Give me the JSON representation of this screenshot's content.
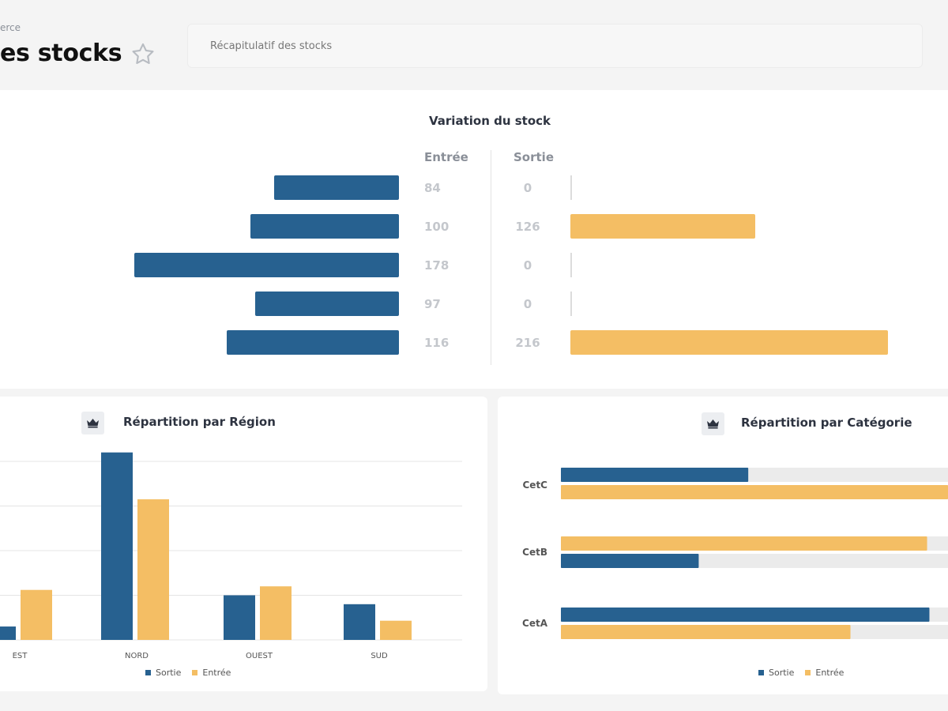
{
  "header": {
    "breadcrumb": "erce",
    "title": "es stocks",
    "search_placeholder": "Récapitulatif des stocks"
  },
  "colors": {
    "sortie": "#276190",
    "entree": "#f4be64",
    "track": "#ebebeb"
  },
  "variation": {
    "title": "Variation du stock",
    "entree_label": "Entrée",
    "sortie_label": "Sortie",
    "chart_data": {
      "type": "bar",
      "title": "Variation du stock",
      "series": [
        {
          "name": "Entrée",
          "values": [
            84,
            100,
            178,
            97,
            116
          ]
        },
        {
          "name": "Sortie",
          "values": [
            0,
            126,
            0,
            0,
            216
          ]
        }
      ]
    }
  },
  "region": {
    "title": "Répartition par Région",
    "legend": [
      "Sortie",
      "Entrée"
    ],
    "chart_data": {
      "type": "bar",
      "title": "Répartition par Région",
      "categories": [
        "EST",
        "NORD",
        "OUEST",
        "SUD"
      ],
      "series": [
        {
          "name": "Sortie",
          "values": [
            30,
            420,
            100,
            80
          ]
        },
        {
          "name": "Entrée",
          "values": [
            112,
            315,
            120,
            43
          ]
        }
      ],
      "ylim": [
        0,
        400
      ],
      "grid": true,
      "legend": "bottom"
    }
  },
  "category": {
    "title": "Répartition par Catégorie",
    "legend": [
      "Sortie",
      "Entrée"
    ],
    "chart_data": {
      "type": "bar",
      "title": "Répartition par Catégorie",
      "categories": [
        "CetC",
        "CetB",
        "CetA"
      ],
      "series": [
        {
          "name": "Sortie",
          "values": [
            242,
            178,
            476
          ]
        },
        {
          "name": "Entrée",
          "values": [
            500,
            473,
            374
          ]
        }
      ],
      "xlim": [
        0,
        500
      ],
      "legend": "bottom"
    }
  }
}
